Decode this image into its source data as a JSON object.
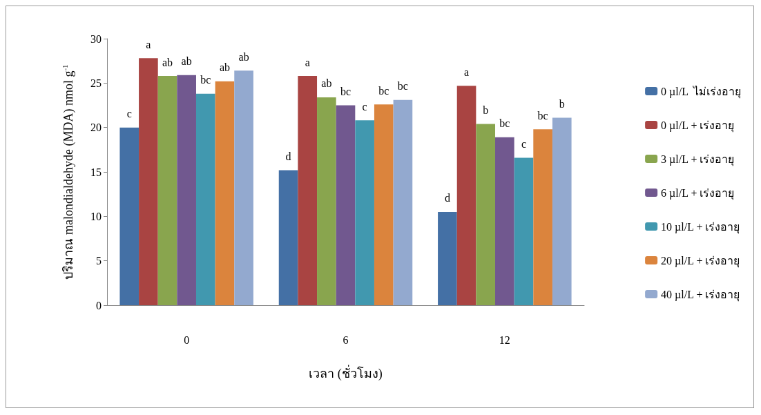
{
  "chart_data": {
    "type": "bar",
    "xlabel": "เวลา (ชั่วโมง)",
    "ylabel": "ปริมาณ malondialdehyde (MDA) nmol g$^{-1}$",
    "categories": [
      "0",
      "6",
      "12"
    ],
    "ylim": [
      0,
      30
    ],
    "yticks": [
      0,
      5,
      10,
      15,
      20,
      25,
      30
    ],
    "grid": false,
    "legend": "right",
    "series": [
      {
        "name": "0 µl/L  ไม่เร่งอายุ",
        "color": "#4470a5",
        "values": [
          20.0,
          15.2,
          10.5
        ],
        "value_labels": [
          "c",
          "d",
          "d"
        ]
      },
      {
        "name": "0 µl/L + เร่งอายุ",
        "color": "#a94442",
        "values": [
          27.8,
          25.8,
          24.7
        ],
        "value_labels": [
          "a",
          "a",
          "a"
        ]
      },
      {
        "name": "3 µl/L + เร่งอายุ",
        "color": "#89a54e",
        "values": [
          25.8,
          23.4,
          20.4
        ],
        "value_labels": [
          "ab",
          "ab",
          "b"
        ]
      },
      {
        "name": "6 µl/L + เร่งอายุ",
        "color": "#71588f",
        "values": [
          25.9,
          22.5,
          18.9
        ],
        "value_labels": [
          "ab",
          "bc",
          "bc"
        ]
      },
      {
        "name": "10 µl/L + เร่งอายุ",
        "color": "#4198af",
        "values": [
          23.8,
          20.8,
          16.6
        ],
        "value_labels": [
          "bc",
          "c",
          "c"
        ]
      },
      {
        "name": "20 µl/L + เร่งอายุ",
        "color": "#db843d",
        "values": [
          25.2,
          22.6,
          19.8
        ],
        "value_labels": [
          "ab",
          "bc",
          "bc"
        ]
      },
      {
        "name": "40 µl/L + เร่งอายุ",
        "color": "#93a9cf",
        "values": [
          26.4,
          23.1,
          21.1
        ],
        "value_labels": [
          "ab",
          "bc",
          "b"
        ]
      }
    ]
  }
}
